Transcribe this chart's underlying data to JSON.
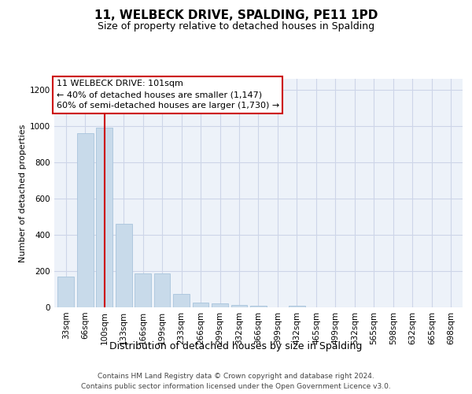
{
  "title": "11, WELBECK DRIVE, SPALDING, PE11 1PD",
  "subtitle": "Size of property relative to detached houses in Spalding",
  "xlabel": "Distribution of detached houses by size in Spalding",
  "ylabel": "Number of detached properties",
  "categories": [
    "33sqm",
    "66sqm",
    "100sqm",
    "133sqm",
    "166sqm",
    "199sqm",
    "233sqm",
    "266sqm",
    "299sqm",
    "332sqm",
    "366sqm",
    "399sqm",
    "432sqm",
    "465sqm",
    "499sqm",
    "532sqm",
    "565sqm",
    "598sqm",
    "632sqm",
    "665sqm",
    "698sqm"
  ],
  "values": [
    170,
    960,
    990,
    460,
    185,
    185,
    75,
    25,
    20,
    15,
    10,
    0,
    10,
    0,
    0,
    0,
    0,
    0,
    0,
    0,
    0
  ],
  "bar_color": "#c8daea",
  "bar_edge_color": "#a8c4dc",
  "red_line_index": 2,
  "red_line_color": "#cc0000",
  "annotation_line1": "11 WELBECK DRIVE: 101sqm",
  "annotation_line2": "← 40% of detached houses are smaller (1,147)",
  "annotation_line3": "60% of semi-detached houses are larger (1,730) →",
  "annotation_box_facecolor": "#ffffff",
  "annotation_box_edgecolor": "#cc0000",
  "ylim": [
    0,
    1260
  ],
  "yticks": [
    0,
    200,
    400,
    600,
    800,
    1000,
    1200
  ],
  "footnote_line1": "Contains HM Land Registry data © Crown copyright and database right 2024.",
  "footnote_line2": "Contains public sector information licensed under the Open Government Licence v3.0.",
  "grid_color": "#cdd5e8",
  "bg_color": "#edf2f9",
  "title_fontsize": 11,
  "subtitle_fontsize": 9,
  "ylabel_fontsize": 8,
  "xlabel_fontsize": 9,
  "tick_fontsize": 7.5,
  "annot_fontsize": 8,
  "footnote_fontsize": 6.5
}
